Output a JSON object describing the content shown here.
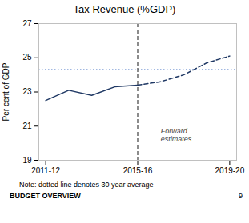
{
  "chart_data": {
    "type": "line",
    "title": "Tax Revenue (%GDP)",
    "ylabel": "Per cent of GDP",
    "xlim": [
      -0.3,
      8.3
    ],
    "xticks": [
      {
        "value": 0,
        "label": "2011-12"
      },
      {
        "value": 4,
        "label": "2015-16"
      },
      {
        "value": 8,
        "label": "2019-20"
      }
    ],
    "ylim": [
      19,
      27
    ],
    "yticks": [
      19,
      21,
      23,
      25,
      27
    ],
    "grid": false,
    "series": [
      {
        "x": [
          0,
          1,
          2,
          3,
          4
        ],
        "values": [
          22.5,
          23.1,
          22.8,
          23.3,
          23.4
        ],
        "color": "#1f3864",
        "line_style": "solid"
      },
      {
        "x": [
          4,
          5,
          6,
          7,
          8
        ],
        "values": [
          23.4,
          23.6,
          24.0,
          24.7,
          25.1
        ],
        "color": "#1f3864",
        "line_style": "dashed"
      }
    ],
    "reference_lines": [
      {
        "axis": "y",
        "value": 24.3,
        "color": "#4472c4",
        "line_style": "dotted"
      },
      {
        "axis": "x",
        "value": 4,
        "color": "#404040",
        "line_style": "dashed"
      }
    ],
    "annotations": [
      {
        "text": "Forward\nestimates",
        "x": 5.0,
        "y": 20.5,
        "color": "#404040"
      }
    ],
    "caption": "Note: dotted line denotes 30 year average",
    "footer_left": "BUDGET OVERVIEW",
    "footer_right": "9"
  }
}
